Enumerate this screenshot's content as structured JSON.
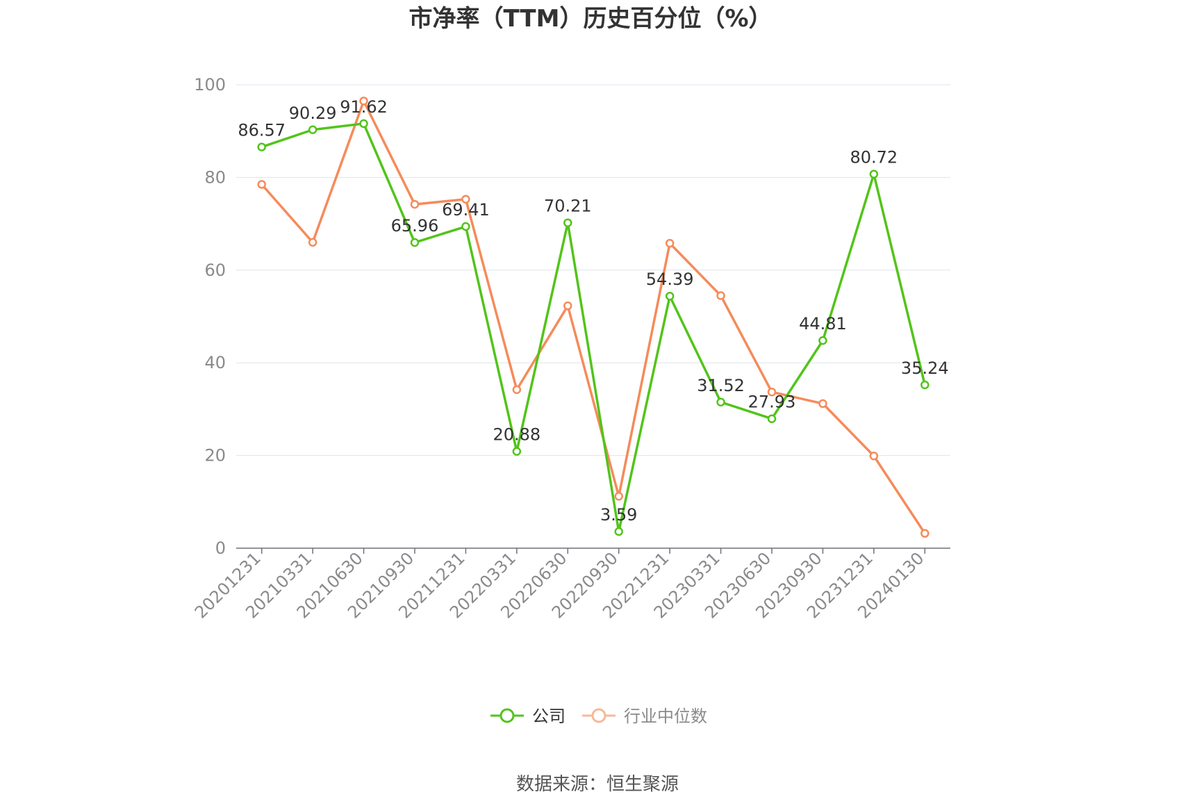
{
  "chart_data": {
    "type": "line",
    "title": "市净率（TTM）历史百分位（%）",
    "categories": [
      "20201231",
      "20210331",
      "20210630",
      "20210930",
      "20211231",
      "20220331",
      "20220630",
      "20220930",
      "20221231",
      "20230331",
      "20230630",
      "20230930",
      "20231231",
      "20240130"
    ],
    "series": [
      {
        "name": "公司",
        "color": "#52c41a",
        "values": [
          86.57,
          90.29,
          91.62,
          65.96,
          69.41,
          20.88,
          70.21,
          3.59,
          54.39,
          31.52,
          27.93,
          44.81,
          80.72,
          35.24
        ],
        "labels": [
          "86.57",
          "90.29",
          "91.62",
          "65.96",
          "69.41",
          "20.88",
          "70.21",
          "3.59",
          "54.39",
          "31.52",
          "27.93",
          "44.81",
          "80.72",
          "35.24"
        ]
      },
      {
        "name": "行业中位数",
        "color": "#f58b5a",
        "values": [
          78.5,
          66.0,
          96.5,
          74.2,
          75.3,
          34.2,
          52.3,
          11.2,
          65.8,
          54.5,
          33.7,
          31.2,
          19.9,
          3.2
        ]
      }
    ],
    "y_ticks": [
      "0",
      "20",
      "40",
      "60",
      "80",
      "100"
    ],
    "ylim": [
      0,
      100
    ],
    "grid": true,
    "legend_position": "bottom-center"
  },
  "source_text": "数据来源：恒生聚源"
}
